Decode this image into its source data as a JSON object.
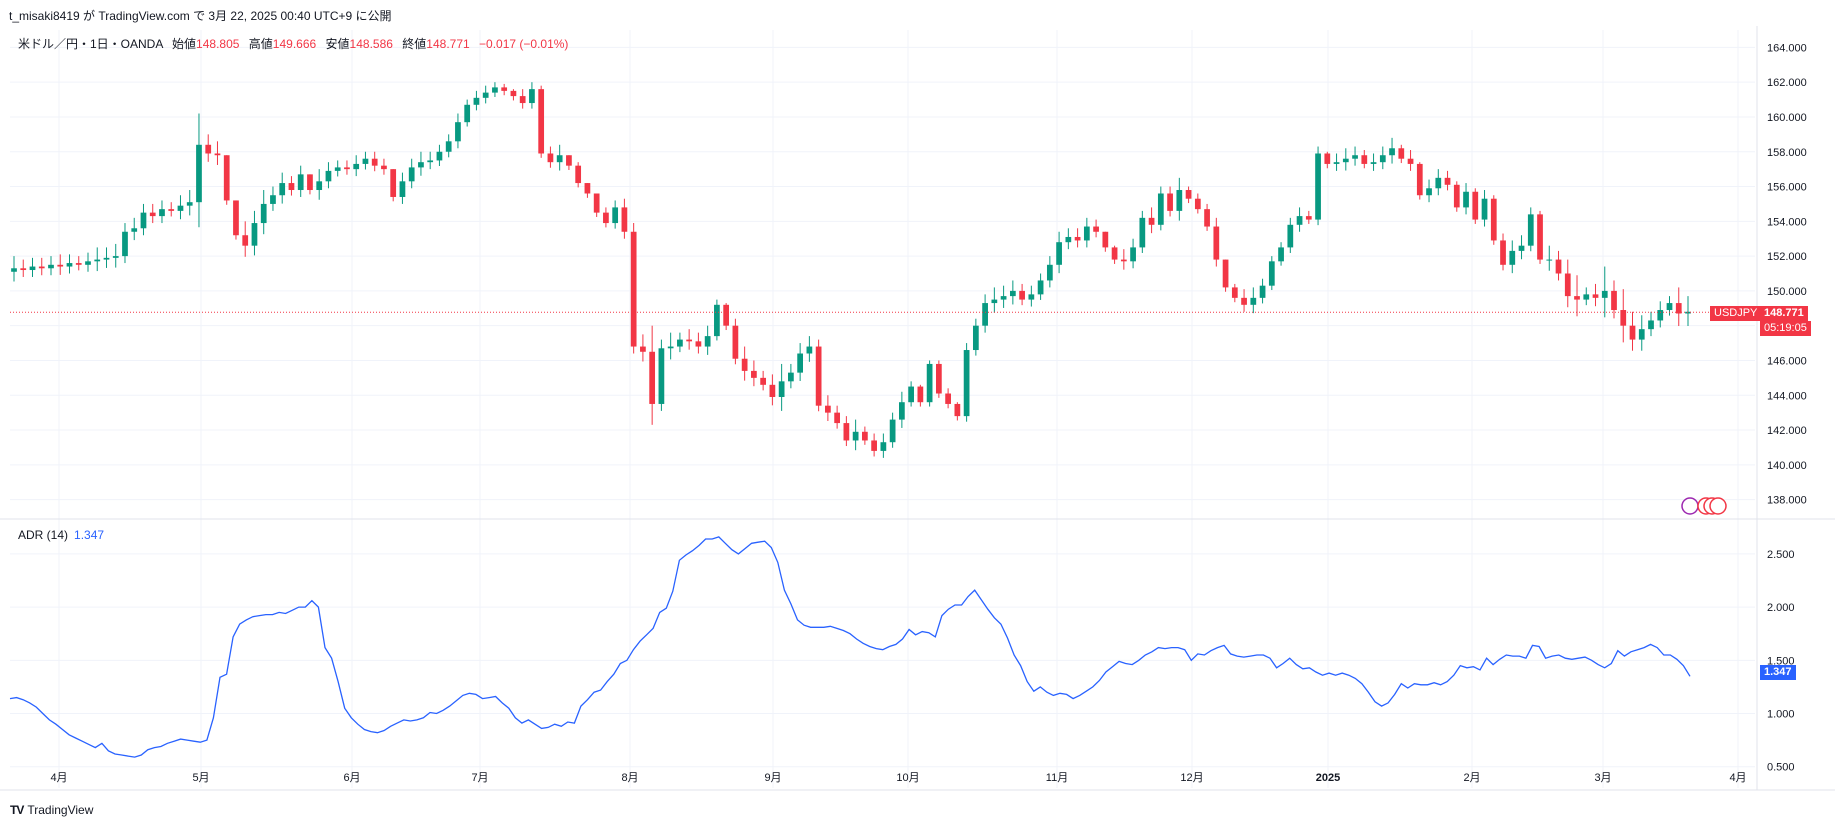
{
  "header": {
    "publish_text": "t_misaki8419 が TradingView.com で 3月 22, 2025 00:40 UTC+9 に公開"
  },
  "legend": {
    "symbol": "米ドル／円・1日・OANDA",
    "open_label": "始値",
    "open": "148.805",
    "high_label": "高値",
    "high": "149.666",
    "low_label": "安値",
    "low": "148.586",
    "close_label": "終値",
    "close": "148.771",
    "change": "−0.017 (−0.01%)"
  },
  "price_tag": {
    "symbol": "USDJPY",
    "price": "148.771",
    "countdown": "05:19:05"
  },
  "adr_legend": {
    "name": "ADR (14)",
    "value": "1.347"
  },
  "footer": {
    "brand": "TradingView"
  },
  "colors": {
    "up": "#089981",
    "down": "#f23645",
    "adr_line": "#2962ff",
    "grid": "#f0f3fa"
  },
  "chart_data": [
    {
      "type": "candlestick",
      "symbol": "USDJPY",
      "ylim": [
        137,
        165
      ],
      "yticks": [
        "138.000",
        "140.000",
        "142.000",
        "144.000",
        "146.000",
        "148.000",
        "150.000",
        "152.000",
        "154.000",
        "156.000",
        "158.000",
        "160.000",
        "162.000",
        "164.000"
      ],
      "xticks": [
        "4月",
        "5月",
        "6月",
        "7月",
        "8月",
        "9月",
        "10月",
        "11月",
        "12月",
        "2025",
        "2月",
        "3月",
        "4月"
      ],
      "last_price": 148.771,
      "close_series": [
        151.3,
        151.2,
        151.4,
        151.3,
        151.5,
        151.4,
        151.6,
        151.5,
        151.7,
        151.8,
        151.9,
        152.0,
        153.4,
        153.6,
        154.5,
        154.3,
        154.7,
        154.6,
        154.9,
        155.1,
        158.4,
        157.9,
        157.8,
        155.2,
        153.2,
        152.6,
        153.9,
        155.0,
        155.5,
        156.2,
        155.8,
        156.7,
        155.8,
        156.3,
        156.9,
        157.1,
        157.0,
        157.3,
        157.6,
        157.2,
        157.0,
        155.4,
        156.3,
        157.1,
        157.4,
        157.5,
        158.0,
        158.6,
        159.7,
        160.7,
        161.1,
        161.4,
        161.7,
        161.5,
        161.2,
        160.8,
        161.6,
        157.9,
        157.4,
        157.8,
        157.2,
        156.2,
        155.6,
        154.5,
        153.9,
        154.8,
        153.4,
        146.8,
        146.5,
        143.5,
        146.7,
        146.8,
        147.2,
        147.1,
        146.8,
        147.4,
        149.2,
        148.0,
        146.1,
        145.4,
        145.0,
        144.6,
        143.9,
        144.8,
        145.3,
        146.4,
        146.8,
        143.4,
        143.0,
        142.4,
        141.4,
        141.9,
        141.4,
        140.8,
        141.3,
        142.6,
        143.6,
        144.5,
        143.6,
        145.8,
        144.1,
        143.5,
        142.8,
        146.6,
        148.0,
        149.3,
        149.5,
        149.7,
        150.0,
        149.5,
        149.8,
        150.6,
        151.5,
        152.8,
        153.1,
        152.9,
        153.7,
        153.4,
        152.5,
        151.8,
        151.7,
        152.5,
        154.2,
        153.8,
        155.6,
        154.6,
        155.8,
        155.3,
        154.7,
        153.7,
        151.8,
        150.2,
        149.6,
        149.2,
        149.6,
        150.3,
        151.7,
        152.5,
        153.8,
        154.3,
        154.1,
        157.9,
        157.3,
        157.4,
        157.6,
        157.8,
        157.3,
        157.4,
        157.8,
        158.2,
        157.6,
        157.3,
        155.5,
        155.9,
        156.5,
        156.1,
        154.8,
        155.7,
        154.1,
        155.3,
        152.9,
        151.5,
        152.3,
        152.6,
        154.4,
        151.8,
        151.8,
        151.0,
        149.7,
        149.5,
        149.8,
        149.6,
        150.0,
        148.9,
        148.0,
        147.2,
        147.8,
        148.3,
        148.9,
        149.3,
        148.7,
        148.8
      ],
      "high_series": [
        152.0,
        151.8,
        151.9,
        151.9,
        152.0,
        152.1,
        152.1,
        152.0,
        152.2,
        152.5,
        152.5,
        152.7,
        153.9,
        154.2,
        155.0,
        155.0,
        155.2,
        155.1,
        155.5,
        155.8,
        160.2,
        159.0,
        158.6,
        157.0,
        154.5,
        154.0,
        154.6,
        155.8,
        156.0,
        156.8,
        156.6,
        157.2,
        156.5,
        157.0,
        157.4,
        157.5,
        157.5,
        157.8,
        158.0,
        158.0,
        157.6,
        157.0,
        156.8,
        157.6,
        158.0,
        158.0,
        158.4,
        159.0,
        160.2,
        161.0,
        161.5,
        161.8,
        162.0,
        161.9,
        161.6,
        161.6,
        162.0,
        161.8,
        158.3,
        158.4,
        157.8,
        157.4,
        156.2,
        155.4,
        154.8,
        155.2,
        155.3,
        153.9,
        147.5,
        148.0,
        147.2,
        147.6,
        147.6,
        147.8,
        147.6,
        148.0,
        149.5,
        149.3,
        148.4,
        146.8,
        146.0,
        145.4,
        145.2,
        145.8,
        145.8,
        147.0,
        147.4,
        147.2,
        144.0,
        143.4,
        142.8,
        142.6,
        142.2,
        141.8,
        141.8,
        143.0,
        144.2,
        144.8,
        144.6,
        146.0,
        146.0,
        144.4,
        143.6,
        147.0,
        148.4,
        149.8,
        150.2,
        150.3,
        150.6,
        150.4,
        150.3,
        151.0,
        152.0,
        153.4,
        153.6,
        153.6,
        154.2,
        154.1,
        153.4,
        152.6,
        152.4,
        153.0,
        154.6,
        154.8,
        156.0,
        156.0,
        156.5,
        156.0,
        155.6,
        155.0,
        154.2,
        151.0,
        150.4,
        150.1,
        150.2,
        150.7,
        152.0,
        152.8,
        154.2,
        154.8,
        154.6,
        158.3,
        158.0,
        157.9,
        158.2,
        158.3,
        158.1,
        157.9,
        158.3,
        158.8,
        158.4,
        158.1,
        157.4,
        156.4,
        157.0,
        156.9,
        156.3,
        156.2,
        155.9,
        155.8,
        155.5,
        153.3,
        152.9,
        153.2,
        154.8,
        154.6,
        152.6,
        152.3,
        151.8,
        150.9,
        150.2,
        150.4,
        151.4,
        150.6,
        150.1,
        148.8,
        148.6,
        148.8,
        149.4,
        149.7,
        150.2,
        149.7
      ]
    },
    {
      "type": "line",
      "name": "ADR (14)",
      "ylim": [
        0.3,
        2.8
      ],
      "yticks": [
        "0.500",
        "1.000",
        "1.500",
        "2.000",
        "2.500"
      ],
      "last_value": 1.347,
      "values": [
        1.14,
        1.15,
        1.13,
        1.1,
        1.06,
        1.0,
        0.94,
        0.9,
        0.85,
        0.8,
        0.77,
        0.74,
        0.71,
        0.68,
        0.72,
        0.65,
        0.62,
        0.61,
        0.6,
        0.59,
        0.61,
        0.66,
        0.68,
        0.69,
        0.72,
        0.74,
        0.76,
        0.75,
        0.74,
        0.73,
        0.75,
        0.96,
        1.34,
        1.37,
        1.72,
        1.84,
        1.88,
        1.91,
        1.92,
        1.93,
        1.93,
        1.95,
        1.94,
        1.97,
        2.0,
        2.0,
        2.06,
        2.0,
        1.62,
        1.52,
        1.3,
        1.05,
        0.96,
        0.9,
        0.85,
        0.83,
        0.82,
        0.84,
        0.88,
        0.91,
        0.94,
        0.93,
        0.94,
        0.96,
        1.01,
        1.0,
        1.03,
        1.07,
        1.12,
        1.17,
        1.19,
        1.18,
        1.14,
        1.15,
        1.16,
        1.1,
        1.05,
        0.96,
        0.91,
        0.94,
        0.9,
        0.86,
        0.87,
        0.9,
        0.88,
        0.92,
        0.91,
        1.07,
        1.13,
        1.2,
        1.22,
        1.3,
        1.37,
        1.47,
        1.5,
        1.6,
        1.68,
        1.74,
        1.8,
        1.95,
        1.99,
        2.15,
        2.44,
        2.49,
        2.53,
        2.58,
        2.64,
        2.64,
        2.66,
        2.6,
        2.54,
        2.5,
        2.55,
        2.6,
        2.61,
        2.62,
        2.56,
        2.42,
        2.16,
        2.03,
        1.88,
        1.83,
        1.81,
        1.81,
        1.81,
        1.82,
        1.8,
        1.78,
        1.75,
        1.7,
        1.66,
        1.63,
        1.61,
        1.6,
        1.63,
        1.65,
        1.7,
        1.79,
        1.74,
        1.77,
        1.76,
        1.72,
        1.92,
        1.98,
        2.02,
        2.02,
        2.1,
        2.16,
        2.07,
        1.98,
        1.9,
        1.84,
        1.71,
        1.55,
        1.45,
        1.3,
        1.21,
        1.25,
        1.2,
        1.17,
        1.19,
        1.18,
        1.14,
        1.17,
        1.21,
        1.25,
        1.31,
        1.39,
        1.44,
        1.49,
        1.47,
        1.46,
        1.5,
        1.55,
        1.58,
        1.62,
        1.61,
        1.62,
        1.62,
        1.6,
        1.5,
        1.56,
        1.55,
        1.59,
        1.62,
        1.64,
        1.56,
        1.54,
        1.53,
        1.54,
        1.55,
        1.55,
        1.52,
        1.43,
        1.47,
        1.52,
        1.46,
        1.42,
        1.43,
        1.39,
        1.36,
        1.38,
        1.36,
        1.38,
        1.36,
        1.33,
        1.28,
        1.2,
        1.11,
        1.07,
        1.1,
        1.18,
        1.28,
        1.24,
        1.28,
        1.27,
        1.27,
        1.29,
        1.27,
        1.3,
        1.36,
        1.45,
        1.43,
        1.44,
        1.41,
        1.52,
        1.46,
        1.51,
        1.55,
        1.54,
        1.54,
        1.52,
        1.64,
        1.63,
        1.52,
        1.54,
        1.55,
        1.52,
        1.51,
        1.52,
        1.53,
        1.5,
        1.46,
        1.43,
        1.47,
        1.59,
        1.54,
        1.58,
        1.6,
        1.62,
        1.65,
        1.62,
        1.55,
        1.55,
        1.51,
        1.45,
        1.35
      ]
    }
  ]
}
